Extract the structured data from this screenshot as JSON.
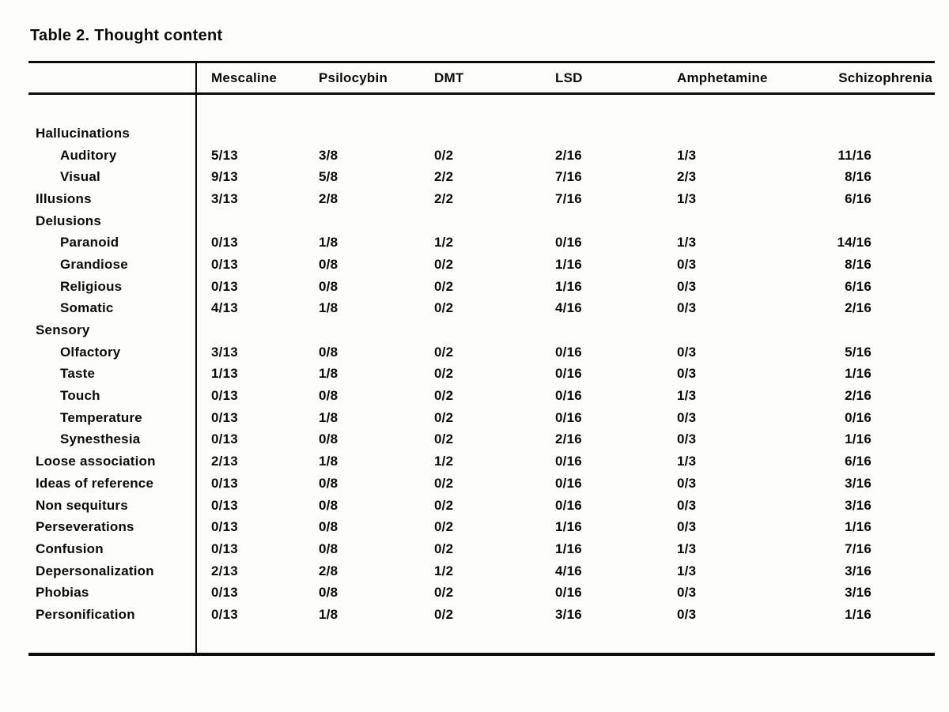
{
  "page_title": "Table 2. Thought content",
  "chart_data": {
    "type": "table",
    "title": "Table 2. Thought content",
    "columns": [
      "Mescaline",
      "Psilocybin",
      "DMT",
      "LSD",
      "Amphetamine",
      "Schizophrenia"
    ],
    "rows": [
      {
        "label": "Hallucinations",
        "indent": 0,
        "values": [
          "",
          "",
          "",
          "",
          "",
          ""
        ]
      },
      {
        "label": "Auditory",
        "indent": 1,
        "values": [
          "5/13",
          "3/8",
          "0/2",
          "2/16",
          "1/3",
          "11/16"
        ]
      },
      {
        "label": "Visual",
        "indent": 1,
        "values": [
          "9/13",
          "5/8",
          "2/2",
          "7/16",
          "2/3",
          "8/16"
        ]
      },
      {
        "label": "Illusions",
        "indent": 0,
        "values": [
          "3/13",
          "2/8",
          "2/2",
          "7/16",
          "1/3",
          "6/16"
        ]
      },
      {
        "label": "Delusions",
        "indent": 0,
        "values": [
          "",
          "",
          "",
          "",
          "",
          ""
        ]
      },
      {
        "label": "Paranoid",
        "indent": 1,
        "values": [
          "0/13",
          "1/8",
          "1/2",
          "0/16",
          "1/3",
          "14/16"
        ]
      },
      {
        "label": "Grandiose",
        "indent": 1,
        "values": [
          "0/13",
          "0/8",
          "0/2",
          "1/16",
          "0/3",
          "8/16"
        ]
      },
      {
        "label": "Religious",
        "indent": 1,
        "values": [
          "0/13",
          "0/8",
          "0/2",
          "1/16",
          "0/3",
          "6/16"
        ]
      },
      {
        "label": "Somatic",
        "indent": 1,
        "values": [
          "4/13",
          "1/8",
          "0/2",
          "4/16",
          "0/3",
          "2/16"
        ]
      },
      {
        "label": "Sensory",
        "indent": 0,
        "values": [
          "",
          "",
          "",
          "",
          "",
          ""
        ]
      },
      {
        "label": "Olfactory",
        "indent": 1,
        "values": [
          "3/13",
          "0/8",
          "0/2",
          "0/16",
          "0/3",
          "5/16"
        ]
      },
      {
        "label": "Taste",
        "indent": 1,
        "values": [
          "1/13",
          "1/8",
          "0/2",
          "0/16",
          "0/3",
          "1/16"
        ]
      },
      {
        "label": "Touch",
        "indent": 1,
        "values": [
          "0/13",
          "0/8",
          "0/2",
          "0/16",
          "1/3",
          "2/16"
        ]
      },
      {
        "label": "Temperature",
        "indent": 1,
        "values": [
          "0/13",
          "1/8",
          "0/2",
          "0/16",
          "0/3",
          "0/16"
        ]
      },
      {
        "label": "Synesthesia",
        "indent": 1,
        "values": [
          "0/13",
          "0/8",
          "0/2",
          "2/16",
          "0/3",
          "1/16"
        ]
      },
      {
        "label": "Loose association",
        "indent": 0,
        "values": [
          "2/13",
          "1/8",
          "1/2",
          "0/16",
          "1/3",
          "6/16"
        ]
      },
      {
        "label": "Ideas of reference",
        "indent": 0,
        "values": [
          "0/13",
          "0/8",
          "0/2",
          "0/16",
          "0/3",
          "3/16"
        ]
      },
      {
        "label": "Non sequiturs",
        "indent": 0,
        "values": [
          "0/13",
          "0/8",
          "0/2",
          "0/16",
          "0/3",
          "3/16"
        ]
      },
      {
        "label": "Perseverations",
        "indent": 0,
        "values": [
          "0/13",
          "0/8",
          "0/2",
          "1/16",
          "0/3",
          "1/16"
        ]
      },
      {
        "label": "Confusion",
        "indent": 0,
        "values": [
          "0/13",
          "0/8",
          "0/2",
          "1/16",
          "1/3",
          "7/16"
        ]
      },
      {
        "label": "Depersonalization",
        "indent": 0,
        "values": [
          "2/13",
          "2/8",
          "1/2",
          "4/16",
          "1/3",
          "3/16"
        ]
      },
      {
        "label": "Phobias",
        "indent": 0,
        "values": [
          "0/13",
          "0/8",
          "0/2",
          "0/16",
          "0/3",
          "3/16"
        ]
      },
      {
        "label": "Personification",
        "indent": 0,
        "values": [
          "0/13",
          "1/8",
          "0/2",
          "3/16",
          "0/3",
          "1/16"
        ]
      }
    ]
  },
  "colors": {
    "ink": "#0b0b0b",
    "paper": "#fdfdfc"
  }
}
